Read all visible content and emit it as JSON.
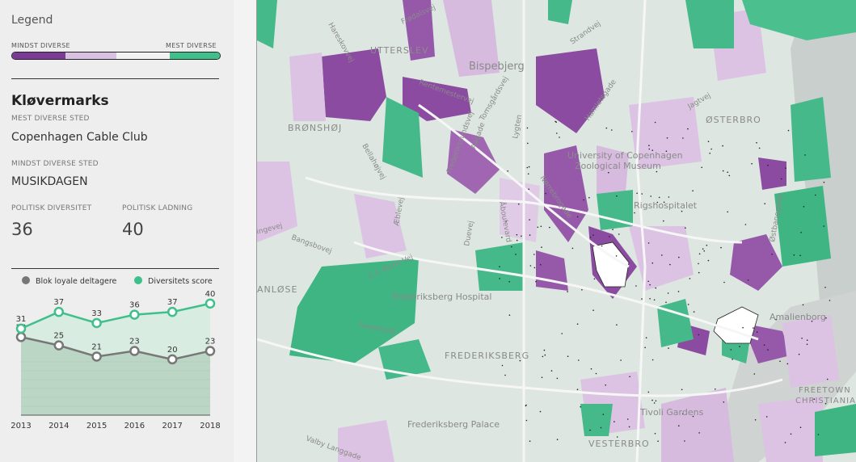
{
  "legend": {
    "title": "Legend",
    "min_label": "MINDST DIVERSE",
    "max_label": "MEST DIVERSE",
    "colors": [
      "#7b3a96",
      "#d9c1e1",
      "#f2f2f2",
      "#3fbf8a"
    ]
  },
  "place": {
    "name": "Kløvermarks",
    "most_label": "MEST DIVERSE STED",
    "most_value": "Copenhagen Cable Club",
    "least_label": "MINDST DIVERSE STED",
    "least_value": "MUSIKDAGEN",
    "pol_div_label": "POLITISK DIVERSITET",
    "pol_div_value": "36",
    "pol_charge_label": "POLITISK LADNING",
    "pol_charge_value": "40"
  },
  "chart_data": {
    "type": "line",
    "x": [
      "2013",
      "2014",
      "2015",
      "2016",
      "2017",
      "2018"
    ],
    "series": [
      {
        "name": "Blok loyale deltagere",
        "color": "#777777",
        "values": [
          28,
          25,
          21,
          23,
          20,
          23
        ]
      },
      {
        "name": "Diversitets score",
        "color": "#3fbf8a",
        "values": [
          31,
          37,
          33,
          36,
          37,
          40
        ]
      }
    ],
    "ylim": [
      0,
      44
    ],
    "legend_position": "top"
  },
  "map": {
    "labels": [
      "UTTERSLEV",
      "Bispebjerg",
      "BRØNSHØJ",
      "ØSTERBRO",
      "University of Copenhagen",
      "Zoological Museum",
      "Rigshospitalet",
      "Frederiksberg Hospital",
      "FREDERIKSBERG",
      "Frederiksberg Palace",
      "Tivoli Gardens",
      "VESTERBRO",
      "Amalienborg",
      "FREETOWN",
      "CHRISTIANIA",
      "ANLØSE"
    ],
    "streets": [
      "Hareskovvej",
      "Frødalsvej",
      "Rentemestervej",
      "Tomsgårdsvej",
      "Lygten",
      "Frederikssundsvej",
      "Bellahøjvej",
      "Nørrebrogade",
      "Åboulevard",
      "Æblevej",
      "Bangsbovej",
      "C.F. Richs Vej",
      "Finsensvej",
      "Duevej",
      "Jagtvej",
      "Østbanegade",
      "Valby Langgade",
      "Strandvej",
      "Hamletsgade",
      "Aagade",
      "Ingevej"
    ]
  }
}
